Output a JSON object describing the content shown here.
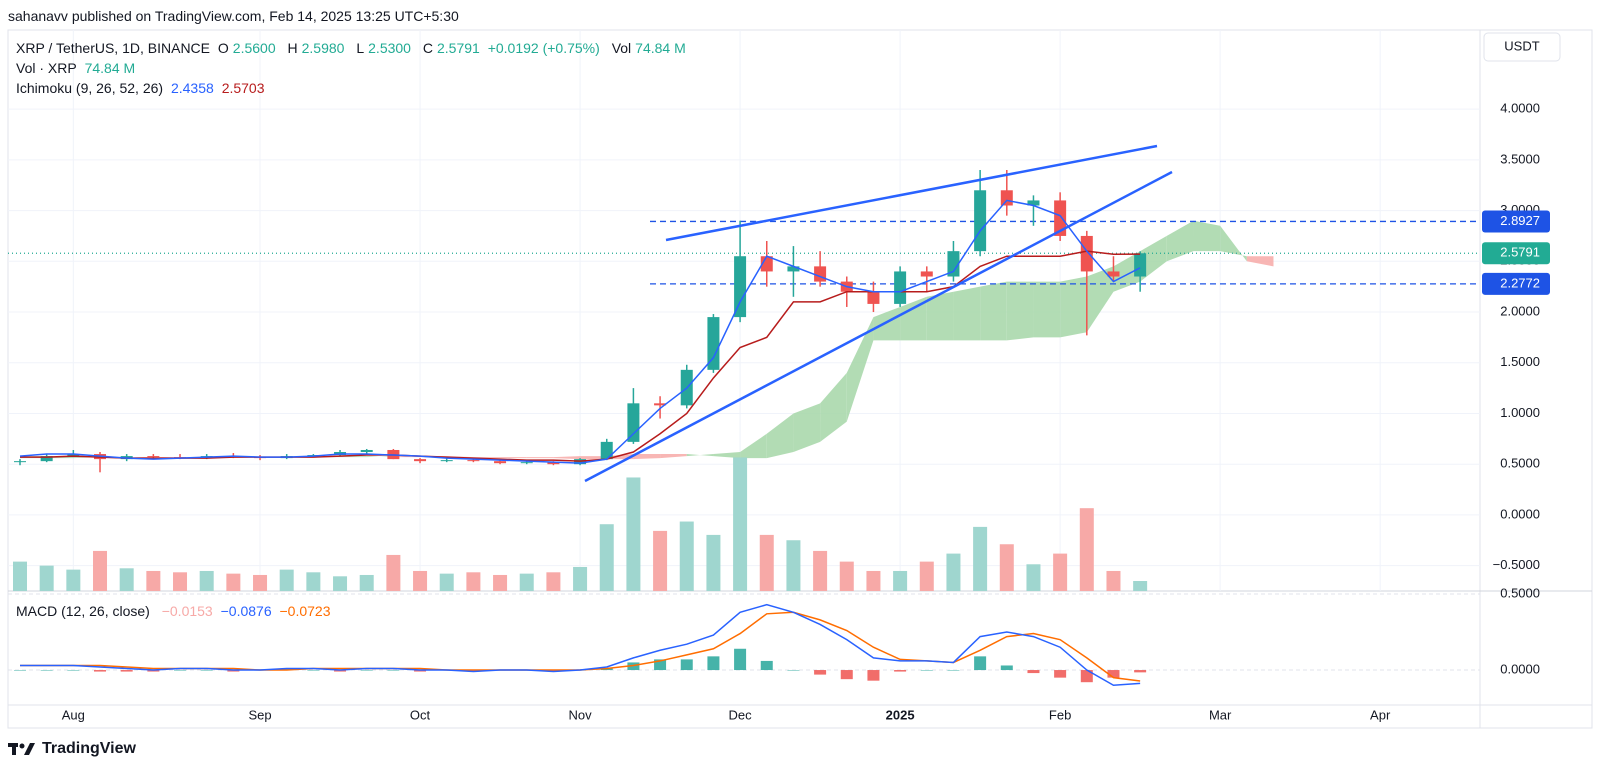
{
  "publisher": "sahanavv published on TradingView.com, Feb 14, 2025 13:25 UTC+5:30",
  "footer": {
    "brand": "TradingView"
  },
  "currency": "USDT",
  "chart_data": {
    "type": "candlestick",
    "legend": {
      "symbol": "XRP / TetherUS, 1D, BINANCE",
      "o_key": "O",
      "open": "2.5600",
      "h_key": "H",
      "high": "2.5980",
      "l_key": "L",
      "low": "2.5300",
      "c_key": "C",
      "close": "2.5791",
      "change": "+0.0192 (+0.75%)",
      "vol_key": "Vol",
      "vol": "74.84 M",
      "vol_title": "Vol · XRP",
      "vol_value": "74.84 M",
      "ichimoku_title": "Ichimoku (9, 26, 52, 26)",
      "ichimoku_conversion": "2.4358",
      "ichimoku_base": "2.5703",
      "macd_title": "MACD (12, 26, close)",
      "macd_hist": "−0.0153",
      "macd_line": "−0.0876",
      "macd_signal": "−0.0723"
    },
    "categories": [
      null,
      null,
      "Aug",
      null,
      null,
      null,
      null,
      null,
      null,
      "Sep",
      null,
      null,
      null,
      null,
      null,
      "Oct",
      null,
      null,
      null,
      null,
      null,
      "Nov",
      null,
      null,
      null,
      null,
      null,
      "Dec",
      null,
      null,
      null,
      null,
      null,
      "2025",
      null,
      null,
      null,
      null,
      null,
      "Feb",
      null,
      null,
      null,
      null,
      null,
      "Mar",
      null,
      null,
      null,
      null,
      null,
      "Apr",
      null,
      null,
      null
    ],
    "open": [
      0.52,
      0.53,
      0.58,
      0.6,
      0.55,
      0.58,
      0.57,
      0.56,
      0.58,
      0.57,
      0.56,
      0.58,
      0.59,
      0.62,
      0.64,
      0.55,
      0.53,
      0.54,
      0.53,
      0.51,
      0.52,
      0.5,
      0.55,
      0.72,
      1.1,
      1.08,
      1.43,
      1.95,
      2.55,
      2.4,
      2.45,
      2.3,
      2.2,
      2.08,
      2.4,
      2.35,
      2.6,
      3.2,
      3.05,
      3.1,
      2.75,
      2.4,
      2.35,
      null,
      null,
      null,
      null,
      null,
      null,
      null,
      null,
      null,
      null,
      null,
      null
    ],
    "high": [
      0.55,
      0.6,
      0.64,
      0.62,
      0.6,
      0.6,
      0.6,
      0.6,
      0.61,
      0.59,
      0.6,
      0.6,
      0.64,
      0.65,
      0.65,
      0.56,
      0.56,
      0.56,
      0.55,
      0.53,
      0.53,
      0.56,
      0.75,
      1.25,
      1.17,
      1.48,
      1.98,
      2.9,
      2.7,
      2.65,
      2.6,
      2.35,
      2.3,
      2.45,
      2.45,
      2.7,
      3.4,
      3.4,
      3.15,
      3.18,
      2.8,
      2.55,
      2.598,
      null,
      null,
      null,
      null,
      null,
      null,
      null,
      null,
      null,
      null,
      null,
      null
    ],
    "low": [
      0.49,
      0.52,
      0.57,
      0.42,
      0.53,
      0.55,
      0.55,
      0.55,
      0.56,
      0.54,
      0.55,
      0.57,
      0.58,
      0.6,
      0.55,
      0.51,
      0.52,
      0.52,
      0.5,
      0.5,
      0.49,
      0.49,
      0.54,
      0.7,
      0.95,
      1.05,
      1.4,
      1.9,
      2.25,
      2.15,
      2.25,
      2.05,
      2.0,
      2.05,
      2.2,
      2.3,
      2.55,
      2.95,
      2.85,
      2.7,
      1.77,
      2.3,
      2.2,
      null,
      null,
      null,
      null,
      null,
      null,
      null,
      null,
      null,
      null,
      null,
      null
    ],
    "close": [
      0.53,
      0.58,
      0.6,
      0.55,
      0.58,
      0.57,
      0.56,
      0.58,
      0.57,
      0.56,
      0.58,
      0.59,
      0.62,
      0.64,
      0.55,
      0.53,
      0.54,
      0.53,
      0.51,
      0.52,
      0.5,
      0.55,
      0.72,
      1.1,
      1.08,
      1.43,
      1.95,
      2.55,
      2.4,
      2.45,
      2.3,
      2.2,
      2.08,
      2.4,
      2.35,
      2.6,
      3.2,
      3.05,
      3.1,
      2.75,
      2.4,
      2.35,
      2.5791,
      null,
      null,
      null,
      null,
      null,
      null,
      null,
      null,
      null,
      null,
      null,
      null
    ],
    "up_color": "#26a69a",
    "down_color": "#ef5350",
    "ylim": [
      -0.75,
      4.78
    ],
    "yticks": [
      {
        "value": 4,
        "label": "4.0000"
      },
      {
        "value": 3.5,
        "label": "3.5000"
      },
      {
        "value": 3,
        "label": "3.0000"
      },
      {
        "value": 2.5,
        "label": "2.5000"
      },
      {
        "value": 2,
        "label": "2.0000"
      },
      {
        "value": 1.5,
        "label": "1.5000"
      },
      {
        "value": 1,
        "label": "1.0000"
      },
      {
        "value": 0.5,
        "label": "0.5000"
      },
      {
        "value": 0,
        "label": "0.0000"
      },
      {
        "value": -0.5,
        "label": "−0.5000"
      }
    ],
    "grid": true,
    "volume": {
      "ylim": [
        0,
        4200
      ],
      "up_color": "#9fd6cf",
      "down_color": "#f7a9a7",
      "values": [
        220,
        190,
        160,
        300,
        170,
        150,
        140,
        150,
        130,
        120,
        160,
        140,
        110,
        120,
        270,
        150,
        130,
        140,
        120,
        130,
        140,
        180,
        500,
        850,
        450,
        520,
        420,
        1000,
        420,
        380,
        300,
        220,
        150,
        150,
        220,
        280,
        480,
        350,
        200,
        280,
        620,
        150,
        74.84,
        null,
        null,
        null,
        null,
        null,
        null,
        null,
        null,
        null,
        null,
        null,
        null
      ]
    },
    "ichimoku": {
      "conversion_color": "#2962ff",
      "base_color": "#b71c1c",
      "cloud_up_color": "#a5d6a7",
      "cloud_down_color": "#f7a9a7",
      "conversion": [
        0.58,
        0.6,
        0.6,
        0.58,
        0.56,
        0.55,
        0.56,
        0.57,
        0.58,
        0.57,
        0.57,
        0.58,
        0.6,
        0.6,
        0.59,
        0.58,
        0.56,
        0.55,
        0.54,
        0.53,
        0.52,
        0.51,
        0.55,
        0.8,
        1.05,
        1.25,
        1.55,
        2.1,
        2.55,
        2.45,
        2.35,
        2.25,
        2.2,
        2.2,
        2.3,
        2.4,
        2.8,
        3.1,
        3.05,
        2.95,
        2.6,
        2.3,
        2.4358,
        null,
        null,
        null,
        null,
        null,
        null,
        null,
        null,
        null,
        null,
        null,
        null
      ],
      "base": [
        0.57,
        0.57,
        0.58,
        0.57,
        0.56,
        0.56,
        0.56,
        0.56,
        0.57,
        0.57,
        0.57,
        0.57,
        0.58,
        0.59,
        0.59,
        0.58,
        0.57,
        0.56,
        0.55,
        0.54,
        0.54,
        0.53,
        0.55,
        0.62,
        0.8,
        1.0,
        1.35,
        1.65,
        1.75,
        2.1,
        2.1,
        2.2,
        2.2,
        2.2,
        2.2,
        2.25,
        2.45,
        2.55,
        2.55,
        2.55,
        2.6,
        2.57,
        2.5703,
        null,
        null,
        null,
        null,
        null,
        null,
        null,
        null,
        null,
        null,
        null,
        null
      ],
      "span_a": [
        0.58,
        0.58,
        0.57,
        0.57,
        0.57,
        0.56,
        0.56,
        0.56,
        0.57,
        0.57,
        0.57,
        0.58,
        0.58,
        0.58,
        0.57,
        0.57,
        0.57,
        0.56,
        0.56,
        0.56,
        0.56,
        0.55,
        0.55,
        0.55,
        0.56,
        0.58,
        0.6,
        0.62,
        0.8,
        1.0,
        1.1,
        1.4,
        1.95,
        2.05,
        2.15,
        2.2,
        2.25,
        2.3,
        2.3,
        2.3,
        2.35,
        2.45,
        2.6,
        2.75,
        2.9,
        2.85,
        2.5,
        2.45,
        null,
        null,
        null,
        null,
        null,
        null,
        null
      ],
      "span_b": [
        0.56,
        0.56,
        0.56,
        0.57,
        0.57,
        0.57,
        0.57,
        0.57,
        0.57,
        0.57,
        0.57,
        0.57,
        0.57,
        0.57,
        0.58,
        0.58,
        0.58,
        0.57,
        0.57,
        0.57,
        0.57,
        0.58,
        0.58,
        0.6,
        0.6,
        0.6,
        0.58,
        0.56,
        0.56,
        0.62,
        0.72,
        0.92,
        1.72,
        1.72,
        1.72,
        1.72,
        1.72,
        1.72,
        1.75,
        1.75,
        1.8,
        2.2,
        2.3,
        2.5,
        2.6,
        2.6,
        2.55,
        2.55,
        null,
        null,
        null,
        null,
        null,
        null,
        null
      ]
    },
    "levels": [
      {
        "value": 2.8927,
        "color": "#1e53e5",
        "style": "dashed"
      },
      {
        "value": 2.5791,
        "color": "#22ab94",
        "style": "dotted"
      },
      {
        "value": 2.2772,
        "color": "#1e53e5",
        "style": "dashed"
      }
    ],
    "macd": {
      "ylim": [
        -0.23,
        0.52
      ],
      "yticks": [
        {
          "value": 0.5,
          "label": "0.5000"
        },
        {
          "value": 0,
          "label": "0.0000"
        }
      ],
      "line_color": "#2962ff",
      "signal_color": "#ff6d00",
      "hist_up_color": "#26a69a",
      "hist_down_color": "#ef5350",
      "line": [
        0.03,
        0.03,
        0.03,
        0.02,
        0.01,
        0,
        0.01,
        0.01,
        0,
        0,
        0.01,
        0.01,
        0,
        0.01,
        0.01,
        0,
        0,
        -0.01,
        0,
        0,
        -0.01,
        0,
        0.02,
        0.08,
        0.13,
        0.17,
        0.23,
        0.38,
        0.43,
        0.38,
        0.3,
        0.2,
        0.08,
        0.06,
        0.06,
        0.05,
        0.22,
        0.25,
        0.22,
        0.15,
        0,
        -0.1,
        -0.0876,
        null,
        null,
        null,
        null,
        null,
        null,
        null,
        null,
        null,
        null,
        null,
        null
      ],
      "signal": [
        0.03,
        0.03,
        0.03,
        0.03,
        0.02,
        0.01,
        0.01,
        0.01,
        0.01,
        0,
        0,
        0.01,
        0.01,
        0.01,
        0.01,
        0.01,
        0,
        0,
        0,
        0,
        0,
        0,
        0.01,
        0.03,
        0.06,
        0.1,
        0.14,
        0.24,
        0.37,
        0.38,
        0.33,
        0.26,
        0.15,
        0.07,
        0.06,
        0.05,
        0.13,
        0.22,
        0.24,
        0.2,
        0.08,
        -0.05,
        -0.0723,
        null,
        null,
        null,
        null,
        null,
        null,
        null,
        null,
        null,
        null,
        null,
        null
      ],
      "histogram": [
        0,
        0,
        0,
        -0.01,
        -0.01,
        -0.01,
        0,
        0,
        -0.01,
        0,
        0.01,
        0,
        -0.01,
        0,
        0,
        -0.01,
        0,
        -0.01,
        0,
        0,
        -0.01,
        0,
        0.01,
        0.05,
        0.07,
        0.07,
        0.09,
        0.14,
        0.06,
        0,
        -0.03,
        -0.06,
        -0.07,
        -0.01,
        0,
        0,
        0.09,
        0.03,
        -0.02,
        -0.05,
        -0.08,
        -0.05,
        -0.0153,
        null,
        null,
        null,
        null,
        null,
        null,
        null,
        null,
        null,
        null,
        null,
        null
      ]
    }
  }
}
